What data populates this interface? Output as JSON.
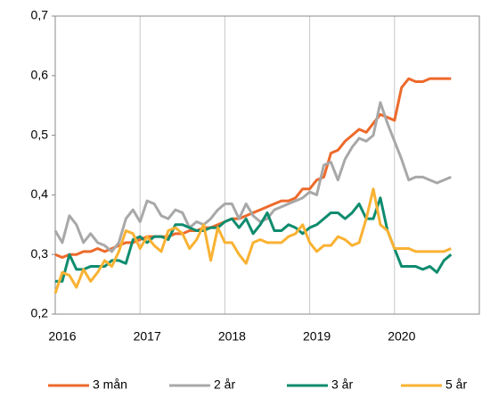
{
  "chart_data": {
    "type": "line",
    "x": [
      2016,
      2016.083,
      2016.167,
      2016.25,
      2016.333,
      2016.417,
      2016.5,
      2016.583,
      2016.667,
      2016.75,
      2016.833,
      2016.917,
      2017,
      2017.083,
      2017.167,
      2017.25,
      2017.333,
      2017.417,
      2017.5,
      2017.583,
      2017.667,
      2017.75,
      2017.833,
      2017.917,
      2018,
      2018.083,
      2018.167,
      2018.25,
      2018.333,
      2018.417,
      2018.5,
      2018.583,
      2018.667,
      2018.75,
      2018.833,
      2018.917,
      2019,
      2019.083,
      2019.167,
      2019.25,
      2019.333,
      2019.417,
      2019.5,
      2019.583,
      2019.667,
      2019.75,
      2019.833,
      2019.917,
      2020,
      2020.083,
      2020.167,
      2020.25,
      2020.333,
      2020.417,
      2020.5,
      2020.583,
      2020.667
    ],
    "series": [
      {
        "name": "3 mån",
        "color": "#ED6A2B",
        "values": [
          0.3,
          0.295,
          0.3,
          0.3,
          0.305,
          0.305,
          0.31,
          0.305,
          0.31,
          0.315,
          0.32,
          0.32,
          0.325,
          0.33,
          0.33,
          0.33,
          0.33,
          0.335,
          0.335,
          0.34,
          0.34,
          0.345,
          0.345,
          0.35,
          0.355,
          0.36,
          0.36,
          0.365,
          0.37,
          0.375,
          0.38,
          0.385,
          0.39,
          0.39,
          0.395,
          0.41,
          0.41,
          0.425,
          0.43,
          0.47,
          0.475,
          0.49,
          0.5,
          0.51,
          0.505,
          0.52,
          0.535,
          0.53,
          0.525,
          0.58,
          0.595,
          0.59,
          0.59,
          0.595,
          0.595,
          0.595,
          0.595
        ]
      },
      {
        "name": "2 år",
        "color": "#A8A8A8",
        "values": [
          0.34,
          0.32,
          0.365,
          0.35,
          0.32,
          0.335,
          0.32,
          0.315,
          0.305,
          0.32,
          0.36,
          0.375,
          0.355,
          0.39,
          0.385,
          0.365,
          0.36,
          0.375,
          0.37,
          0.345,
          0.355,
          0.35,
          0.36,
          0.375,
          0.385,
          0.385,
          0.36,
          0.385,
          0.365,
          0.355,
          0.36,
          0.375,
          0.38,
          0.385,
          0.39,
          0.395,
          0.405,
          0.4,
          0.45,
          0.455,
          0.425,
          0.46,
          0.48,
          0.495,
          0.49,
          0.5,
          0.555,
          0.52,
          0.49,
          0.46,
          0.425,
          0.43,
          0.43,
          0.425,
          0.42,
          0.425,
          0.43
        ]
      },
      {
        "name": "3 år",
        "color": "#0E8C6E",
        "values": [
          0.255,
          0.255,
          0.3,
          0.275,
          0.275,
          0.28,
          0.28,
          0.28,
          0.29,
          0.29,
          0.285,
          0.325,
          0.33,
          0.32,
          0.33,
          0.33,
          0.325,
          0.35,
          0.35,
          0.345,
          0.34,
          0.34,
          0.345,
          0.345,
          0.355,
          0.36,
          0.345,
          0.36,
          0.335,
          0.35,
          0.37,
          0.34,
          0.34,
          0.35,
          0.345,
          0.335,
          0.345,
          0.35,
          0.36,
          0.37,
          0.37,
          0.36,
          0.37,
          0.385,
          0.36,
          0.36,
          0.395,
          0.34,
          0.31,
          0.28,
          0.28,
          0.28,
          0.275,
          0.28,
          0.27,
          0.29,
          0.3
        ]
      },
      {
        "name": "5 år",
        "color": "#F9B233",
        "values": [
          0.235,
          0.27,
          0.265,
          0.245,
          0.275,
          0.255,
          0.27,
          0.29,
          0.28,
          0.305,
          0.34,
          0.335,
          0.31,
          0.33,
          0.315,
          0.305,
          0.34,
          0.345,
          0.335,
          0.31,
          0.325,
          0.35,
          0.29,
          0.345,
          0.32,
          0.32,
          0.3,
          0.285,
          0.32,
          0.325,
          0.32,
          0.32,
          0.32,
          0.33,
          0.335,
          0.35,
          0.32,
          0.305,
          0.315,
          0.315,
          0.33,
          0.325,
          0.315,
          0.32,
          0.36,
          0.41,
          0.35,
          0.34,
          0.31,
          0.31,
          0.31,
          0.305,
          0.305,
          0.305,
          0.305,
          0.305,
          0.31
        ]
      }
    ],
    "xlim": [
      2016,
      2021
    ],
    "xticks": [
      2016,
      2017,
      2018,
      2019,
      2020
    ],
    "ylim": [
      0.2,
      0.7
    ],
    "yticks": [
      {
        "value": 0.2,
        "label": "0,2"
      },
      {
        "value": 0.3,
        "label": "0,3"
      },
      {
        "value": 0.4,
        "label": "0,4"
      },
      {
        "value": 0.5,
        "label": "0,5"
      },
      {
        "value": 0.6,
        "label": "0,6"
      },
      {
        "value": 0.7,
        "label": "0,7"
      }
    ],
    "grid": "x",
    "legend": "bottom"
  }
}
